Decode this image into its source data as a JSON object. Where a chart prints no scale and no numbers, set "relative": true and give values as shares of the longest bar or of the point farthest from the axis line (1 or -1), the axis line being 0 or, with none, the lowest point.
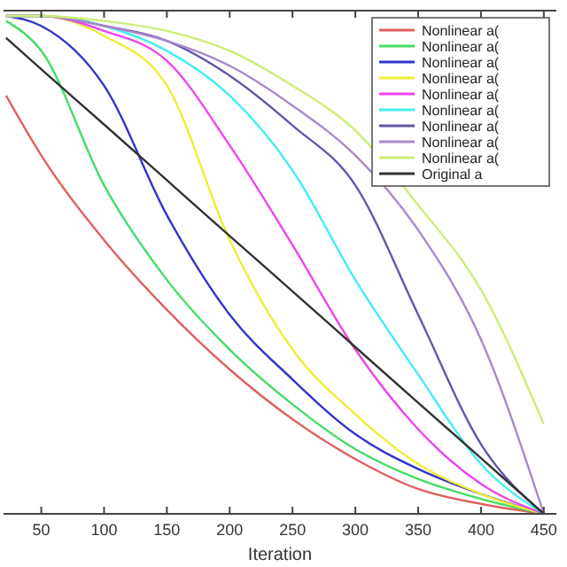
{
  "chart_data": {
    "type": "line",
    "xlabel": "Iteration",
    "relative": true,
    "xlim": [
      20,
      460
    ],
    "xticks": [
      50,
      100,
      150,
      200,
      250,
      300,
      350,
      400,
      450
    ],
    "grid": false,
    "legend": "top right",
    "marker": "none",
    "line_style": "solid",
    "x": [
      22,
      50,
      100,
      150,
      200,
      250,
      300,
      350,
      400,
      450
    ],
    "series": [
      {
        "name": "Nonlinear a(",
        "color": "#e06060",
        "values": [
          0.84,
          0.72,
          0.55,
          0.41,
          0.29,
          0.19,
          0.11,
          0.05,
          0.02,
          0
        ]
      },
      {
        "name": "Nonlinear a(",
        "color": "#44dd66",
        "values": [
          0.99,
          0.93,
          0.66,
          0.47,
          0.33,
          0.22,
          0.13,
          0.07,
          0.03,
          0
        ]
      },
      {
        "name": "Nonlinear a(",
        "color": "#3333cc",
        "values": [
          1,
          0.98,
          0.86,
          0.6,
          0.4,
          0.27,
          0.16,
          0.09,
          0.04,
          0
        ]
      },
      {
        "name": "Nonlinear a(",
        "color": "#eeee33",
        "values": [
          1,
          1,
          0.96,
          0.86,
          0.55,
          0.33,
          0.2,
          0.1,
          0.04,
          0
        ]
      },
      {
        "name": "Nonlinear a(",
        "color": "#ee44ee",
        "values": [
          1,
          1,
          0.97,
          0.91,
          0.74,
          0.54,
          0.33,
          0.17,
          0.06,
          0
        ]
      },
      {
        "name": "Nonlinear a(",
        "color": "#44eeee",
        "values": [
          1,
          1,
          0.98,
          0.93,
          0.84,
          0.69,
          0.47,
          0.28,
          0.1,
          0
        ]
      },
      {
        "name": "Nonlinear a(",
        "color": "#6655aa",
        "values": [
          1,
          1,
          0.98,
          0.95,
          0.88,
          0.78,
          0.66,
          0.4,
          0.14,
          0
        ]
      },
      {
        "name": "Nonlinear a(",
        "color": "#aa88cc",
        "values": [
          1,
          1,
          0.98,
          0.95,
          0.9,
          0.82,
          0.72,
          0.57,
          0.35,
          0
        ]
      },
      {
        "name": "Nonlinear a(",
        "color": "#ccee77",
        "values": [
          1,
          1,
          0.99,
          0.97,
          0.93,
          0.86,
          0.77,
          0.62,
          0.45,
          0.18
        ]
      },
      {
        "name": "Original a",
        "color": "#333333",
        "values": [
          0.956,
          0.893,
          0.782,
          0.67,
          0.558,
          0.447,
          0.335,
          0.223,
          0.112,
          0
        ]
      }
    ]
  }
}
